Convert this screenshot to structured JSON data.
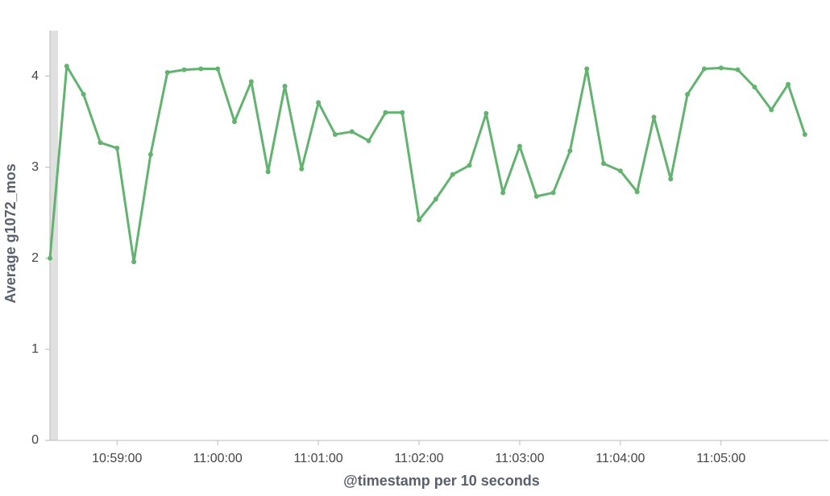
{
  "chart_data": {
    "type": "line",
    "x_label": "@timestamp per 10 seconds",
    "y_label": "Average g1072_mos",
    "x": [
      "10:58:20",
      "10:58:30",
      "10:58:40",
      "10:58:50",
      "10:59:00",
      "10:59:10",
      "10:59:20",
      "10:59:30",
      "10:59:40",
      "10:59:50",
      "11:00:00",
      "11:00:10",
      "11:00:20",
      "11:00:30",
      "11:00:40",
      "11:00:50",
      "11:01:00",
      "11:01:10",
      "11:01:20",
      "11:01:30",
      "11:01:40",
      "11:01:50",
      "11:02:00",
      "11:02:10",
      "11:02:20",
      "11:02:30",
      "11:02:40",
      "11:02:50",
      "11:03:00",
      "11:03:10",
      "11:03:20",
      "11:03:30",
      "11:03:40",
      "11:03:50",
      "11:04:00",
      "11:04:10",
      "11:04:20",
      "11:04:30",
      "11:04:40",
      "11:04:50",
      "11:05:00",
      "11:05:10",
      "11:05:20",
      "11:05:30",
      "11:05:40",
      "11:05:50"
    ],
    "series": [
      {
        "name": "Average g1072_mos",
        "color": "#62b36f",
        "values": [
          2.0,
          4.11,
          3.8,
          3.27,
          3.21,
          1.96,
          3.14,
          4.04,
          4.07,
          4.08,
          4.08,
          3.5,
          3.94,
          2.95,
          3.89,
          2.98,
          3.71,
          3.36,
          3.39,
          3.29,
          3.6,
          3.6,
          2.42,
          2.65,
          2.92,
          3.02,
          3.59,
          2.72,
          3.23,
          2.68,
          2.72,
          3.18,
          4.08,
          3.04,
          2.96,
          2.73,
          3.55,
          2.87,
          3.8,
          4.08,
          4.09,
          4.07,
          3.88,
          3.63,
          3.91,
          3.36
        ]
      }
    ],
    "xlim": [
      "10:58:20",
      "11:06:04"
    ],
    "xticks": [
      "10:59:00",
      "11:00:00",
      "11:01:00",
      "11:02:00",
      "11:03:00",
      "11:04:00",
      "11:05:00"
    ],
    "ylim": [
      0,
      4.5
    ],
    "yticks": [
      0,
      1,
      2,
      3,
      4
    ]
  }
}
